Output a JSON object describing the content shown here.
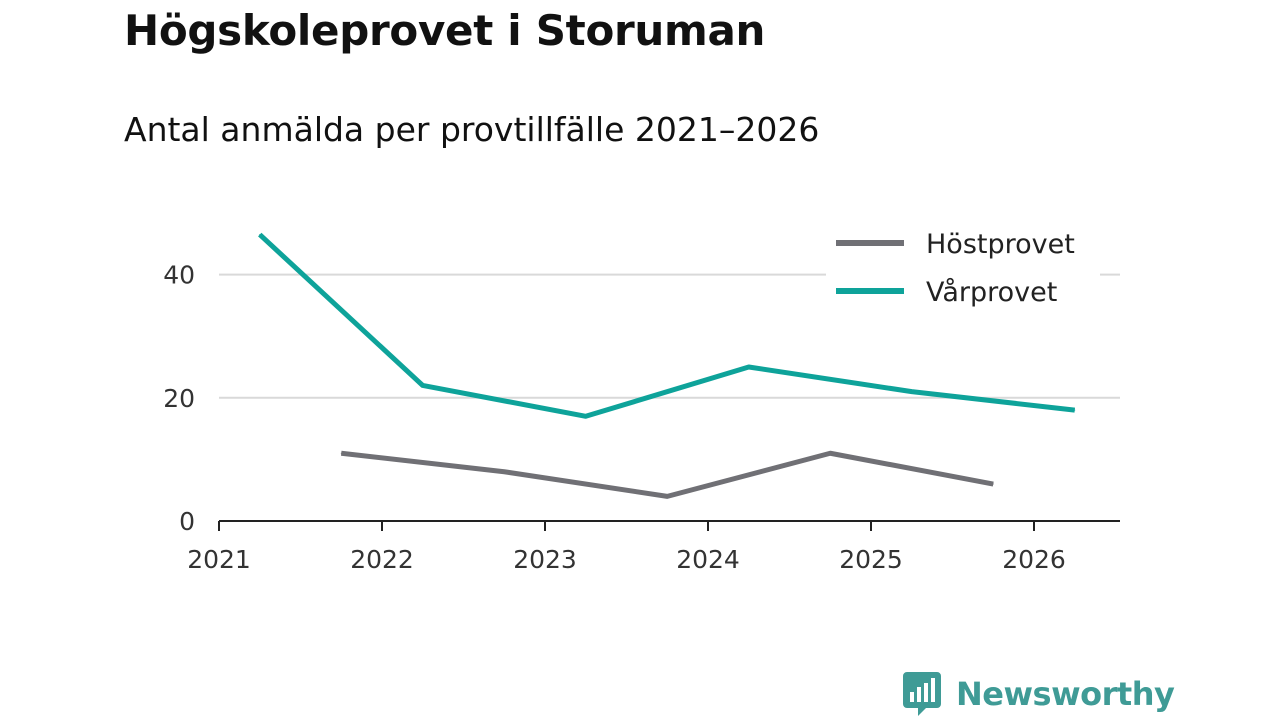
{
  "header": {
    "title": "Högskoleprovet i Storuman",
    "subtitle": "Antal anmälda per provtillfälle 2021–2026"
  },
  "brand": {
    "name": "Newsworthy",
    "logo": "newsworthy-chart-bubble-icon",
    "color": "#3f9b96"
  },
  "colors": {
    "host": "#707075",
    "var": "#0ea39a",
    "grid": "#d9d9d9",
    "axis": "#222222"
  },
  "chart_data": {
    "type": "line",
    "title": "Högskoleprovet i Storuman",
    "subtitle": "Antal anmälda per provtillfälle 2021–2026",
    "xlabel": "",
    "ylabel": "",
    "xlim": [
      2021,
      2026.5
    ],
    "ylim": [
      0,
      47
    ],
    "x_ticks": [
      2021,
      2022,
      2023,
      2024,
      2025,
      2026
    ],
    "y_ticks": [
      0,
      20,
      40
    ],
    "grid": true,
    "legend_position": "top-right",
    "series": [
      {
        "name": "Höstprovet",
        "color": "#707075",
        "points": [
          {
            "x": 2021.75,
            "y": 11
          },
          {
            "x": 2022.75,
            "y": 8
          },
          {
            "x": 2023.75,
            "y": 4
          },
          {
            "x": 2024.75,
            "y": 11
          },
          {
            "x": 2025.75,
            "y": 6
          }
        ]
      },
      {
        "name": "Vårprovet",
        "color": "#0ea39a",
        "points": [
          {
            "x": 2021.25,
            "y": 46.5
          },
          {
            "x": 2022.25,
            "y": 22
          },
          {
            "x": 2023.25,
            "y": 17
          },
          {
            "x": 2024.25,
            "y": 25
          },
          {
            "x": 2025.25,
            "y": 21
          },
          {
            "x": 2026.25,
            "y": 18
          }
        ]
      }
    ]
  }
}
